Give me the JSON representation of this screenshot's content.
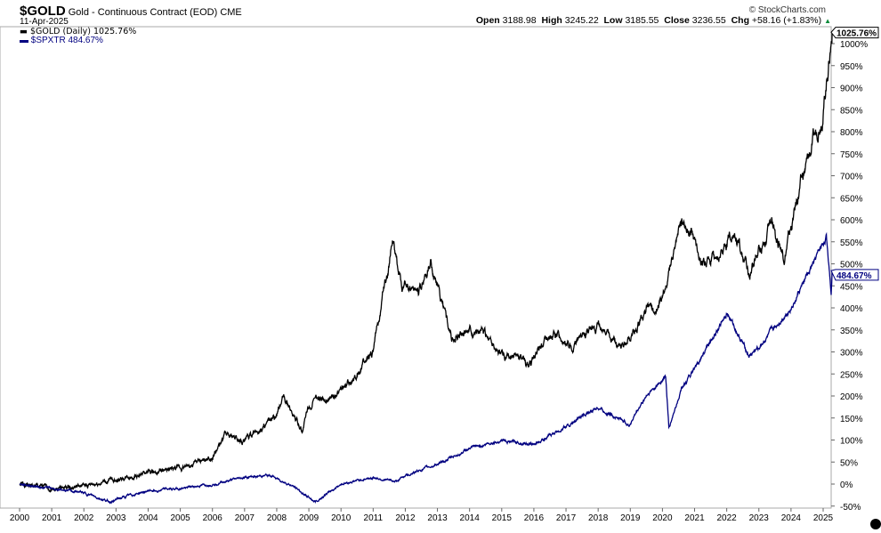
{
  "header": {
    "symbol": "$GOLD",
    "name": "Gold - Continuous Contract (EOD)",
    "exchange": "CME",
    "date": "11-Apr-2025",
    "copyright": "© StockCharts.com",
    "open_label": "Open",
    "open": "3188.98",
    "high_label": "High",
    "high": "3245.22",
    "low_label": "Low",
    "low": "3185.55",
    "close_label": "Close",
    "close": "3236.55",
    "chg_label": "Chg",
    "chg": "+58.16 (+1.83%)",
    "chg_icon": "up-triangle-icon"
  },
  "legend": [
    {
      "label": "$GOLD (Daily) 1025.76%",
      "color": "#000000"
    },
    {
      "label": "$SPXTR 484.67%",
      "color": "#000080"
    }
  ],
  "chart_data": {
    "type": "line",
    "title": "$GOLD Gold - Continuous Contract (EOD) CME",
    "xlabel": "",
    "ylabel": "",
    "xlim": [
      2000,
      2025.3
    ],
    "ylim": [
      -60,
      1040
    ],
    "x_ticks": [
      "2000",
      "2001",
      "2002",
      "2003",
      "2004",
      "2005",
      "2006",
      "2007",
      "2008",
      "2009",
      "2010",
      "2011",
      "2012",
      "2013",
      "2014",
      "2015",
      "2016",
      "2017",
      "2018",
      "2019",
      "2020",
      "2021",
      "2022",
      "2023",
      "2024",
      "2025"
    ],
    "y_ticks": [
      "-50%",
      "0%",
      "50%",
      "100%",
      "150%",
      "200%",
      "250%",
      "300%",
      "350%",
      "400%",
      "450%",
      "500%",
      "550%",
      "600%",
      "650%",
      "700%",
      "750%",
      "800%",
      "850%",
      "900%",
      "950%",
      "1000%"
    ],
    "grid": false,
    "series": [
      {
        "name": "$GOLD",
        "color": "#000000",
        "last_label": "1025.76%",
        "x": [
          2000,
          2001,
          2002,
          2003,
          2004,
          2005,
          2006,
          2006.4,
          2007,
          2008,
          2008.2,
          2008.8,
          2009,
          2010,
          2010.5,
          2011,
          2011.6,
          2011.9,
          2012.5,
          2012.8,
          2013,
          2013.5,
          2014,
          2014.5,
          2015,
          2015.9,
          2016.5,
          2017,
          2017.5,
          2018,
          2018.7,
          2019,
          2019.5,
          2020,
          2020.6,
          2021,
          2021.3,
          2021.8,
          2022.2,
          2022.7,
          2023,
          2023.4,
          2023.8,
          2024,
          2024.3,
          2024.8,
          2025,
          2025.28
        ],
        "y": [
          0,
          -10,
          -5,
          10,
          25,
          35,
          60,
          110,
          100,
          150,
          200,
          120,
          180,
          210,
          250,
          300,
          550,
          450,
          450,
          500,
          450,
          320,
          360,
          340,
          290,
          270,
          350,
          310,
          340,
          360,
          310,
          330,
          390,
          410,
          600,
          560,
          500,
          520,
          580,
          470,
          530,
          590,
          520,
          580,
          680,
          800,
          850,
          1025.76
        ]
      },
      {
        "name": "$SPXTR",
        "color": "#000080",
        "last_label": "484.67%",
        "x": [
          2000,
          2001,
          2002,
          2002.8,
          2003,
          2004,
          2005,
          2006,
          2007,
          2007.8,
          2008.5,
          2009.2,
          2010,
          2011,
          2011.7,
          2012,
          2013,
          2014,
          2015,
          2016,
          2017,
          2018,
          2018.97,
          2019.5,
          2020.1,
          2020.2,
          2020.6,
          2021,
          2022,
          2022.7,
          2023,
          2024,
          2025.1,
          2025.25,
          2025.28
        ],
        "y": [
          0,
          -10,
          -20,
          -40,
          -35,
          -15,
          -10,
          0,
          15,
          20,
          -5,
          -40,
          0,
          15,
          5,
          20,
          45,
          80,
          100,
          90,
          130,
          175,
          135,
          200,
          245,
          125,
          220,
          260,
          390,
          290,
          310,
          400,
          560,
          440,
          484.67
        ]
      }
    ]
  }
}
